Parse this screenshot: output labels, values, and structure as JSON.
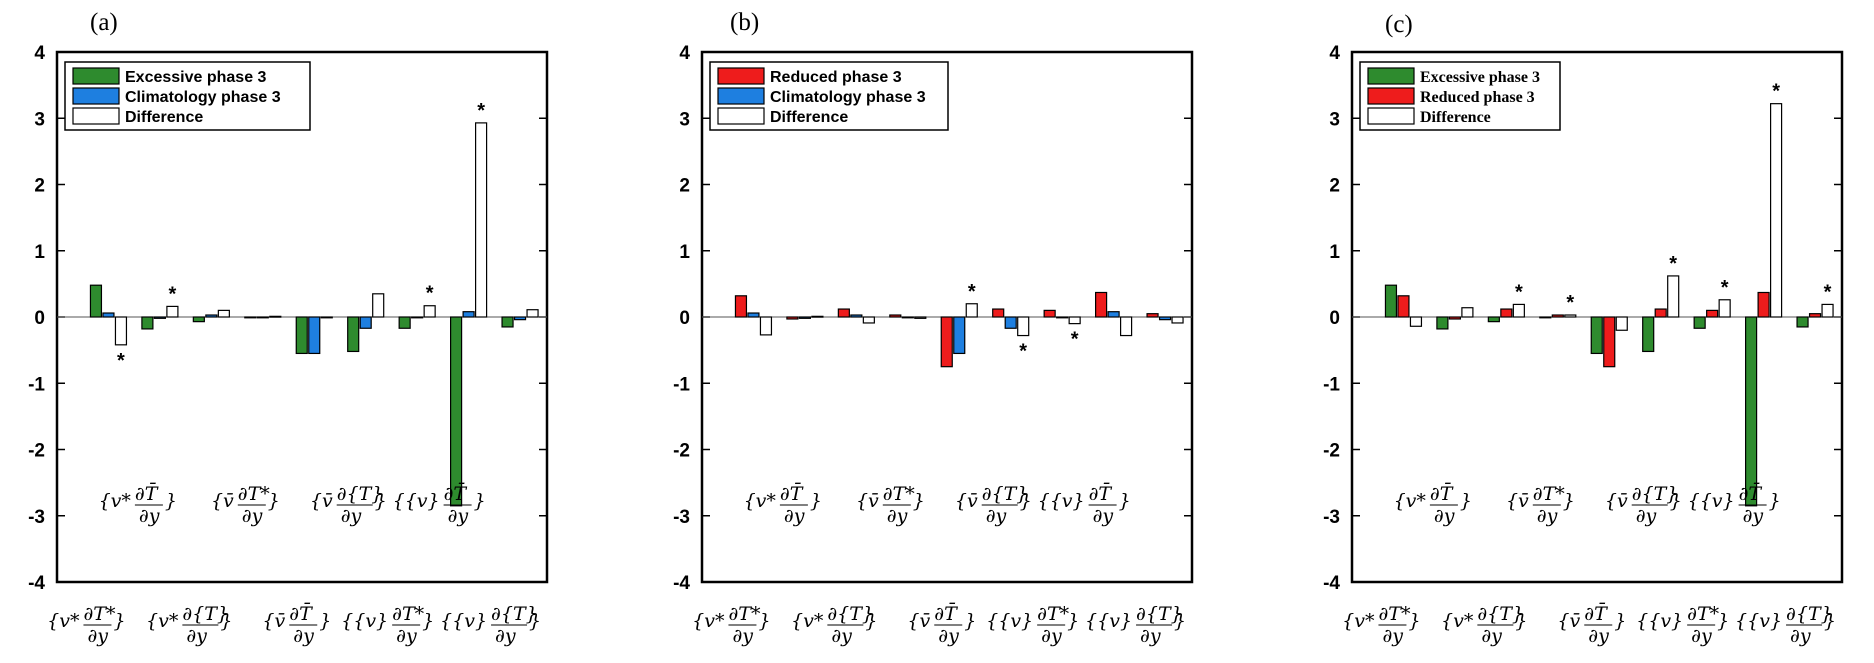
{
  "colors": {
    "green": "#2e8b2e",
    "blue": "#1e7fe0",
    "red": "#ee1c1c",
    "white": "#ffffff",
    "stroke": "#000000"
  },
  "chart_data": [
    {
      "type": "bar",
      "panel_label": "(a)",
      "ylim": [
        -4,
        4
      ],
      "yticks": [
        -4,
        -3,
        -2,
        -1,
        0,
        1,
        2,
        3,
        4
      ],
      "ytick_labels": [
        "-4",
        "-3",
        "-2",
        "-1",
        "0",
        "1",
        "2",
        "3",
        "4"
      ],
      "legend_position": "top-left",
      "legend_font": "sans",
      "categories_upper": [
        "{v*∂T̄/∂y}",
        "{v̄∂T*/∂y}",
        "{v̄∂{T}/∂y}",
        "{{v}∂T̄/∂y}"
      ],
      "categories_lower": [
        "{v*∂T*/∂y}",
        "{v*∂{T}/∂y}",
        "{v̄∂T̄/∂y}",
        "{{v}∂T*/∂y}",
        "{{v}∂{T}/∂y}"
      ],
      "series": [
        {
          "name": "Excessive phase 3",
          "color": "green",
          "values": [
            0.48,
            -0.18,
            -0.07,
            0.0,
            -0.55,
            -0.52,
            -0.17,
            -2.85,
            -0.15
          ]
        },
        {
          "name": "Climatology phase 3",
          "color": "blue",
          "values": [
            0.06,
            -0.02,
            0.03,
            -0.01,
            -0.55,
            -0.17,
            0.0,
            0.08,
            -0.04
          ]
        },
        {
          "name": "Difference",
          "color": "white",
          "values": [
            -0.42,
            0.16,
            0.1,
            0.01,
            0.0,
            0.35,
            0.17,
            2.93,
            0.11
          ]
        }
      ],
      "significant_series": "Difference",
      "significance_marker": "*",
      "significant": [
        true,
        true,
        false,
        false,
        false,
        false,
        true,
        true,
        false
      ]
    },
    {
      "type": "bar",
      "panel_label": "(b)",
      "ylim": [
        -4,
        4
      ],
      "yticks": [
        -4,
        -3,
        -2,
        -1,
        0,
        1,
        2,
        3,
        4
      ],
      "ytick_labels": [
        "-4",
        "-3",
        "-2",
        "-1",
        "0",
        "1",
        "2",
        "3",
        "4"
      ],
      "legend_position": "top-left",
      "legend_font": "sans",
      "categories_upper": [
        "{v*∂T̄/∂y}",
        "{v̄∂T*/∂y}",
        "{v̄∂{T}/∂y}",
        "{{v}∂T̄/∂y}"
      ],
      "categories_lower": [
        "{v*∂T*/∂y}",
        "{v*∂{T}/∂y}",
        "{v̄∂T̄/∂y}",
        "{{v}∂T*/∂y}",
        "{{v}∂{T}/∂y}"
      ],
      "series": [
        {
          "name": "Reduced phase 3",
          "color": "red",
          "values": [
            0.32,
            -0.03,
            0.12,
            0.03,
            -0.75,
            0.12,
            0.1,
            0.37,
            0.05
          ]
        },
        {
          "name": "Climatology phase 3",
          "color": "blue",
          "values": [
            0.06,
            -0.02,
            0.03,
            -0.01,
            -0.55,
            -0.17,
            0.0,
            0.08,
            -0.04
          ]
        },
        {
          "name": "Difference",
          "color": "white",
          "values": [
            -0.27,
            0.01,
            -0.09,
            -0.02,
            0.2,
            -0.28,
            -0.1,
            -0.28,
            -0.09
          ]
        }
      ],
      "significant_series": "Difference",
      "significance_marker": "*",
      "significant": [
        false,
        false,
        false,
        false,
        true,
        true,
        true,
        false,
        false
      ]
    },
    {
      "type": "bar",
      "panel_label": "(c)",
      "ylim": [
        -4,
        4
      ],
      "yticks": [
        -4,
        -3,
        -2,
        -1,
        0,
        1,
        2,
        3,
        4
      ],
      "ytick_labels": [
        "-4",
        "-3",
        "-2",
        "-1",
        "0",
        "1",
        "2",
        "3",
        "4"
      ],
      "legend_position": "top-left",
      "legend_font": "serif",
      "categories_upper": [
        "{v*∂T̄/∂y}",
        "{v̄∂T*/∂y}",
        "{v̄∂{T}/∂y}",
        "{{v}∂T̄/∂y}"
      ],
      "categories_lower": [
        "{v*∂T*/∂y}",
        "{v*∂{T}/∂y}",
        "{v̄∂T̄/∂y}",
        "{{v}∂T*/∂y}",
        "{{v}∂{T}/∂y}"
      ],
      "series": [
        {
          "name": "Excessive phase 3",
          "color": "green",
          "values": [
            0.48,
            -0.18,
            -0.07,
            0.0,
            -0.55,
            -0.52,
            -0.17,
            -2.85,
            -0.15
          ]
        },
        {
          "name": "Reduced phase 3",
          "color": "red",
          "values": [
            0.32,
            -0.03,
            0.12,
            0.03,
            -0.75,
            0.12,
            0.1,
            0.37,
            0.05
          ]
        },
        {
          "name": "Difference",
          "color": "white",
          "values": [
            -0.14,
            0.14,
            0.19,
            0.03,
            -0.2,
            0.62,
            0.26,
            3.22,
            0.19
          ]
        }
      ],
      "significant_series": "Difference",
      "significance_marker": "*",
      "significant": [
        false,
        false,
        true,
        true,
        false,
        true,
        true,
        true,
        true
      ]
    }
  ]
}
